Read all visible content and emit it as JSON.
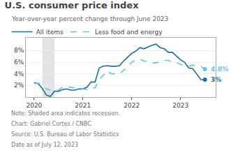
{
  "chart_data": {
    "type": "line",
    "title": "U.S. consumer price index",
    "subtitle": "Year-over-year percent change through June 2023",
    "notes": [
      "Note: Shaded area indicates recession.",
      "Chart: Gabriel Cortes / CNBC",
      "Source: U.S. Bureau of Labor Statistics",
      "Date as of July 12, 2023"
    ],
    "shaded_x": [
      2020.167,
      2020.417
    ],
    "x": [
      2020.0,
      2020.083,
      2020.167,
      2020.25,
      2020.333,
      2020.417,
      2020.5,
      2020.583,
      2020.667,
      2020.75,
      2020.833,
      2020.917,
      2021.0,
      2021.083,
      2021.167,
      2021.25,
      2021.333,
      2021.417,
      2021.5,
      2021.583,
      2021.667,
      2021.75,
      2021.833,
      2021.917,
      2022.0,
      2022.083,
      2022.167,
      2022.25,
      2022.333,
      2022.417,
      2022.5,
      2022.583,
      2022.667,
      2022.75,
      2022.833,
      2022.917,
      2023.0,
      2023.083,
      2023.167,
      2023.25,
      2023.333,
      2023.417,
      2023.5
    ],
    "series": [
      {
        "name": "All items",
        "color": "#1a6fa3",
        "line_style": "solid",
        "end_label": "3%",
        "values": [
          2.5,
          2.3,
          1.5,
          0.35,
          0.12,
          1.0,
          1.0,
          1.3,
          1.4,
          1.2,
          1.2,
          1.4,
          1.4,
          1.7,
          2.6,
          2.6,
          5.0,
          5.3,
          5.4,
          5.3,
          5.3,
          5.4,
          6.2,
          6.8,
          7.5,
          7.9,
          8.5,
          8.3,
          8.6,
          8.9,
          9.1,
          8.5,
          8.3,
          7.7,
          7.7,
          7.1,
          6.4,
          6.0,
          5.0,
          4.9,
          4.0,
          3.0,
          3.0
        ]
      },
      {
        "name": "Less food and energy",
        "color": "#5ec8e0",
        "line_style": "dashed",
        "end_label": "4.8%",
        "values": [
          2.3,
          2.4,
          2.1,
          1.4,
          1.2,
          1.2,
          1.2,
          1.7,
          1.7,
          1.7,
          1.6,
          1.6,
          1.4,
          1.3,
          1.6,
          1.6,
          3.0,
          3.8,
          4.5,
          4.0,
          4.0,
          4.0,
          4.6,
          5.0,
          6.0,
          6.4,
          6.5,
          6.2,
          6.0,
          5.9,
          5.9,
          6.1,
          6.3,
          6.3,
          6.0,
          6.0,
          5.6,
          5.5,
          5.3,
          5.5,
          5.3,
          5.3,
          4.8
        ]
      }
    ],
    "xlim": [
      2019.83,
      2023.72
    ],
    "xticks": [
      2020,
      2021,
      2022,
      2023
    ],
    "ylim": [
      0.0,
      10.2
    ],
    "yticks": [
      {
        "value": 2,
        "label": "2%"
      },
      {
        "value": 4,
        "label": "4%"
      },
      {
        "value": 6,
        "label": "6%"
      },
      {
        "value": 8,
        "label": "8%"
      }
    ],
    "grid": "y",
    "legend": "top left"
  }
}
